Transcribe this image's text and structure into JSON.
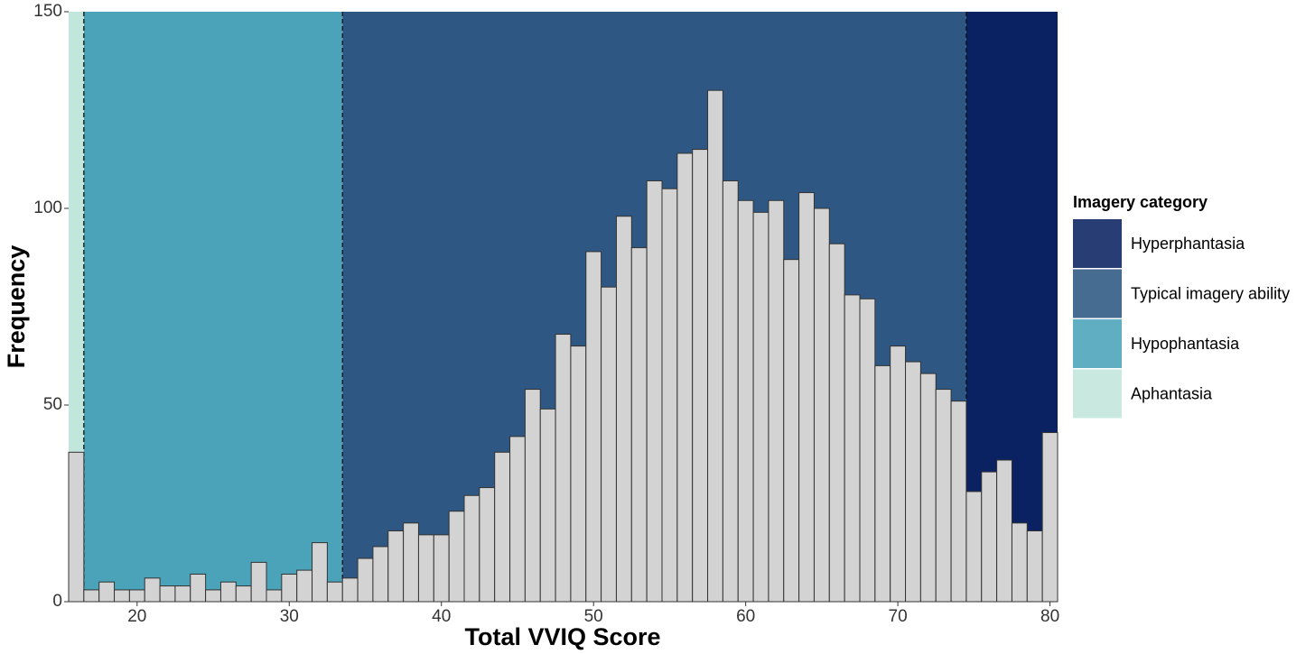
{
  "chart_data": {
    "type": "histogram",
    "x_label": "Total VVIQ Score",
    "y_label": "Frequency",
    "legend_title": "Imagery category",
    "legend_position": "right",
    "bar_color": "#d3d3d3",
    "bar_edge_color": "#333333",
    "bins": [
      15.5,
      16.5,
      17.5,
      18.5,
      19.5,
      20.5,
      21.5,
      22.5,
      23.5,
      24.5,
      25.5,
      26.5,
      27.5,
      28.5,
      29.5,
      30.5,
      31.5,
      32.5,
      33.5,
      34.5,
      35.5,
      36.5,
      37.5,
      38.5,
      39.5,
      40.5,
      41.5,
      42.5,
      43.5,
      44.5,
      45.5,
      46.5,
      47.5,
      48.5,
      49.5,
      50.5,
      51.5,
      52.5,
      53.5,
      54.5,
      55.5,
      56.5,
      57.5,
      58.5,
      59.5,
      60.5,
      61.5,
      62.5,
      63.5,
      64.5,
      65.5,
      66.5,
      67.5,
      68.5,
      69.5,
      70.5,
      71.5,
      72.5,
      73.5,
      74.5,
      75.5,
      76.5,
      77.5,
      78.5,
      79.5,
      80.5
    ],
    "values": [
      38,
      3,
      5,
      3,
      3,
      6,
      4,
      4,
      7,
      3,
      5,
      4,
      10,
      3,
      7,
      8,
      15,
      5,
      6,
      11,
      14,
      18,
      20,
      17,
      17,
      23,
      27,
      29,
      38,
      42,
      54,
      49,
      68,
      65,
      89,
      80,
      98,
      90,
      107,
      105,
      114,
      115,
      130,
      107,
      102,
      99,
      102,
      87,
      104,
      100,
      91,
      78,
      77,
      60,
      65,
      61,
      58,
      54,
      51,
      28,
      33,
      36,
      20,
      18,
      43
    ],
    "regions": [
      {
        "name": "Hyperphantasia",
        "color": "#0b2262",
        "range": [
          74.5,
          80.5
        ]
      },
      {
        "name": "Typical imagery ability",
        "color": "#2e5883",
        "range": [
          33.5,
          74.5
        ]
      },
      {
        "name": "Hypophantasia",
        "color": "#4aa3b8",
        "range": [
          16.5,
          33.5
        ]
      },
      {
        "name": "Aphantasia",
        "color": "#c2e6dc",
        "range": [
          15.5,
          16.5
        ]
      }
    ],
    "xlim": [
      15.5,
      80.5
    ],
    "ylim": [
      0,
      150
    ],
    "xticks": [
      20,
      30,
      40,
      50,
      60,
      70,
      80
    ],
    "yticks": [
      0,
      50,
      100,
      150
    ]
  }
}
